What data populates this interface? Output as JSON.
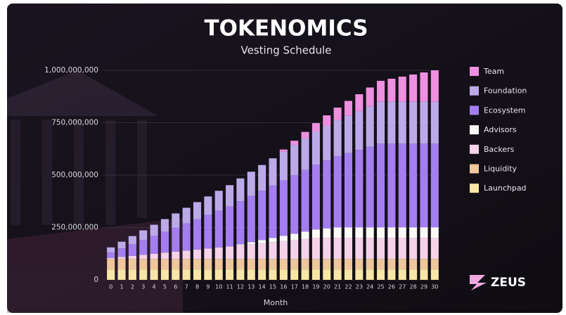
{
  "chart_data": {
    "type": "stacked_bar",
    "title": "TOKENOMICS",
    "subtitle": "Vesting Schedule",
    "x_label": "Month",
    "brand": "ZEUS",
    "categories": [
      "0",
      "1",
      "2",
      "3",
      "4",
      "5",
      "6",
      "7",
      "8",
      "9",
      "10",
      "11",
      "12",
      "13",
      "14",
      "15",
      "16",
      "17",
      "18",
      "19",
      "20",
      "21",
      "22",
      "23",
      "24",
      "25",
      "26",
      "27",
      "28",
      "29",
      "30"
    ],
    "ylim": [
      0,
      1000000000
    ],
    "yticks": [
      0,
      {
        "value": 250000000,
        "label": "250,000,000"
      },
      {
        "value": 500000000,
        "label": "500,000,000"
      },
      {
        "value": 750000000,
        "label": "750,000,000"
      },
      {
        "value": 1000000000,
        "label": "1,000,000,000"
      }
    ],
    "grid": true,
    "series": [
      {
        "name": "Launchpad",
        "color": "#f7e6a6",
        "values": [
          50000000,
          50000000,
          50000000,
          50000000,
          50000000,
          50000000,
          50000000,
          50000000,
          50000000,
          50000000,
          50000000,
          50000000,
          50000000,
          50000000,
          50000000,
          50000000,
          50000000,
          50000000,
          50000000,
          50000000,
          50000000,
          50000000,
          50000000,
          50000000,
          50000000,
          50000000,
          50000000,
          50000000,
          50000000,
          50000000,
          50000000
        ]
      },
      {
        "name": "Liquidity",
        "color": "#eec79c",
        "values": [
          50000000,
          50000000,
          50000000,
          50000000,
          50000000,
          50000000,
          50000000,
          50000000,
          50000000,
          50000000,
          50000000,
          50000000,
          50000000,
          50000000,
          50000000,
          50000000,
          50000000,
          50000000,
          50000000,
          50000000,
          50000000,
          50000000,
          50000000,
          50000000,
          50000000,
          50000000,
          50000000,
          50000000,
          50000000,
          50000000,
          50000000
        ]
      },
      {
        "name": "Backers",
        "color": "#f5d2ea",
        "values": [
          5000000,
          10000000,
          15000000,
          20000000,
          25000000,
          30000000,
          35000000,
          40000000,
          45000000,
          50000000,
          55000000,
          60000000,
          65000000,
          70000000,
          75000000,
          80000000,
          85000000,
          90000000,
          95000000,
          100000000,
          100000000,
          100000000,
          100000000,
          100000000,
          100000000,
          100000000,
          100000000,
          100000000,
          100000000,
          100000000,
          100000000
        ]
      },
      {
        "name": "Advisors",
        "color": "#fbf9f6",
        "values": [
          0,
          0,
          0,
          0,
          0,
          0,
          0,
          0,
          0,
          0,
          0,
          0,
          5000000,
          10000000,
          15000000,
          20000000,
          25000000,
          30000000,
          35000000,
          40000000,
          45000000,
          50000000,
          50000000,
          50000000,
          50000000,
          50000000,
          50000000,
          50000000,
          50000000,
          50000000,
          50000000
        ]
      },
      {
        "name": "Ecosystem",
        "color": "#a47ef0",
        "values": [
          25000000,
          40000000,
          55000000,
          70000000,
          85000000,
          100000000,
          115000000,
          130000000,
          145000000,
          160000000,
          175000000,
          190000000,
          205000000,
          220000000,
          235000000,
          250000000,
          265000000,
          280000000,
          295000000,
          310000000,
          325000000,
          340000000,
          355000000,
          370000000,
          385000000,
          400000000,
          400000000,
          400000000,
          400000000,
          400000000,
          400000000
        ]
      },
      {
        "name": "Foundation",
        "color": "#bcaae8",
        "values": [
          25000000,
          32000000,
          39000000,
          46000000,
          53000000,
          60000000,
          67000000,
          74000000,
          81000000,
          88000000,
          95000000,
          102000000,
          109000000,
          116000000,
          123000000,
          130000000,
          137000000,
          144000000,
          151000000,
          158000000,
          165000000,
          172000000,
          179000000,
          186000000,
          193000000,
          200000000,
          200000000,
          200000000,
          200000000,
          200000000,
          200000000
        ]
      },
      {
        "name": "Team",
        "color": "#ee8fdf",
        "values": [
          0,
          0,
          0,
          0,
          0,
          0,
          0,
          0,
          0,
          0,
          0,
          0,
          0,
          0,
          0,
          0,
          10000000,
          20000000,
          30000000,
          40000000,
          50000000,
          60000000,
          70000000,
          80000000,
          90000000,
          100000000,
          110000000,
          120000000,
          130000000,
          140000000,
          150000000
        ]
      }
    ]
  }
}
